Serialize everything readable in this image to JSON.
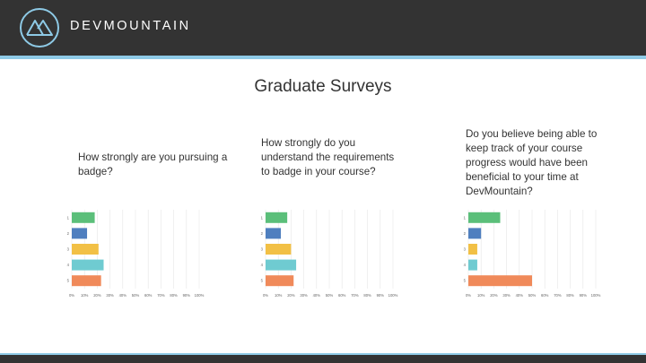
{
  "header": {
    "logo_text": "DEVMOUNTAIN"
  },
  "page": {
    "title": "Graduate Surveys"
  },
  "questions": [
    "How strongly are you pursuing a badge?",
    "How strongly do you understand the requirements to badge in your course?",
    "Do you believe being able to keep track of your course progress would have been beneficial to your time at DevMountain?"
  ],
  "colors": {
    "header_bg": "#333333",
    "accent_line": "#8ecae6",
    "bars": [
      "#5bbf7a",
      "#4f7fbf",
      "#f2c045",
      "#6fcbd1",
      "#f08a5a"
    ]
  },
  "chart_data": [
    {
      "type": "bar",
      "orientation": "horizontal",
      "categories": [
        "1",
        "2",
        "3",
        "4",
        "5"
      ],
      "values": [
        18,
        12,
        21,
        25,
        23
      ],
      "x_ticks": [
        "0%",
        "10%",
        "20%",
        "30%",
        "40%",
        "50%",
        "60%",
        "70%",
        "80%",
        "90%",
        "100%"
      ],
      "xlim": [
        0,
        100
      ],
      "grid": true
    },
    {
      "type": "bar",
      "orientation": "horizontal",
      "categories": [
        "1",
        "2",
        "3",
        "4",
        "5"
      ],
      "values": [
        17,
        12,
        20,
        24,
        22
      ],
      "x_ticks": [
        "0%",
        "10%",
        "20%",
        "30%",
        "40%",
        "50%",
        "60%",
        "70%",
        "80%",
        "90%",
        "100%"
      ],
      "xlim": [
        0,
        100
      ],
      "grid": true
    },
    {
      "type": "bar",
      "orientation": "horizontal",
      "categories": [
        "1",
        "2",
        "3",
        "4",
        "5"
      ],
      "values": [
        25,
        10,
        7,
        7,
        50
      ],
      "x_ticks": [
        "0%",
        "10%",
        "20%",
        "30%",
        "40%",
        "50%",
        "60%",
        "70%",
        "80%",
        "90%",
        "100%"
      ],
      "xlim": [
        0,
        100
      ],
      "grid": true
    }
  ]
}
